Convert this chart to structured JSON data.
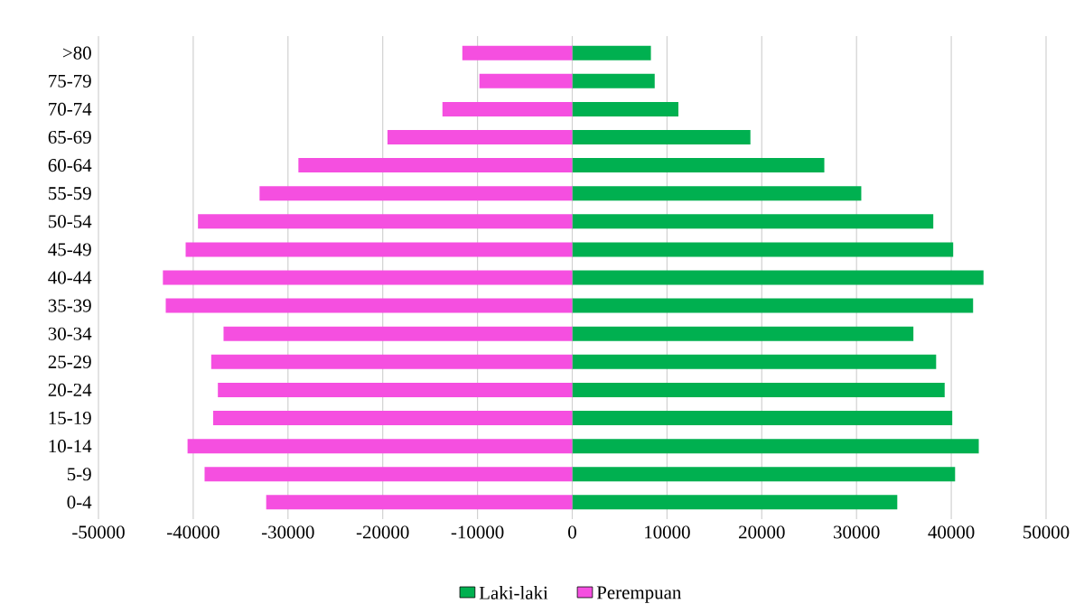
{
  "chart_data": {
    "type": "bar",
    "orientation": "horizontal",
    "categories": [
      ">80",
      "75-79",
      "70-74",
      "65-69",
      "60-64",
      "55-59",
      "50-54",
      "45-49",
      "40-44",
      "35-39",
      "30-34",
      "25-29",
      "20-24",
      "15-19",
      "10-14",
      "5-9",
      "0-4"
    ],
    "series": [
      {
        "name": "Laki-laki",
        "color": "#00b050",
        "values": [
          8300,
          8700,
          11200,
          18800,
          26600,
          30500,
          38100,
          40200,
          43400,
          42300,
          36000,
          38400,
          39300,
          40100,
          42900,
          40400,
          34300
        ]
      },
      {
        "name": "Perempuan",
        "color": "#f54fe0",
        "values": [
          -11600,
          -9800,
          -13700,
          -19500,
          -28900,
          -33000,
          -39500,
          -40800,
          -43200,
          -42900,
          -36800,
          -38100,
          -37400,
          -37900,
          -40600,
          -38800,
          -32300
        ]
      }
    ],
    "xlim": [
      -50000,
      50000
    ],
    "xticks": [
      -50000,
      -40000,
      -30000,
      -20000,
      -10000,
      0,
      10000,
      20000,
      30000,
      40000,
      50000
    ],
    "stacked": true,
    "grid": "x",
    "legend": "bottom"
  }
}
